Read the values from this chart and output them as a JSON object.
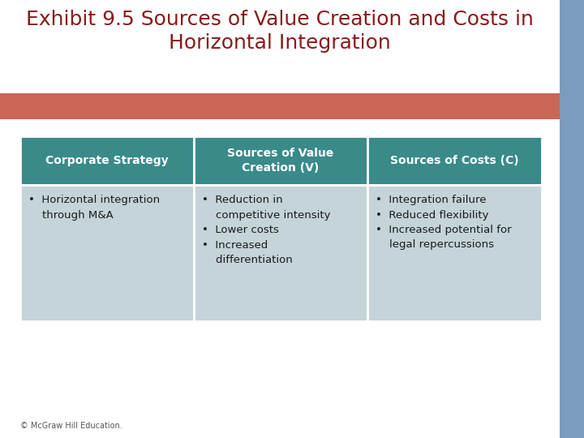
{
  "title_line1": "Exhibit 9.5 Sources of Value Creation and Costs in",
  "title_line2": "Horizontal Integration",
  "title_color": "#8B1A1A",
  "bg_color": "#FFFFFF",
  "sidebar_color": "#7B9BBF",
  "red_bar_color": "#C96655",
  "header_bg_color": "#3A8A8A",
  "header_text_color": "#FFFFFF",
  "cell_bg_color": "#C4D4D8",
  "col_headers": [
    "Corporate Strategy",
    "Sources of Value\nCreation (V)",
    "Sources of Costs (C)"
  ],
  "col1_content": "•  Horizontal integration\n    through M&A",
  "col2_content": "•  Reduction in\n    competitive intensity\n•  Lower costs\n•  Increased\n    differentiation",
  "col3_content": "•  Integration failure\n•  Reduced flexibility\n•  Increased potential for\n    legal repercussions",
  "footer_text": "© McGraw Hill Education."
}
